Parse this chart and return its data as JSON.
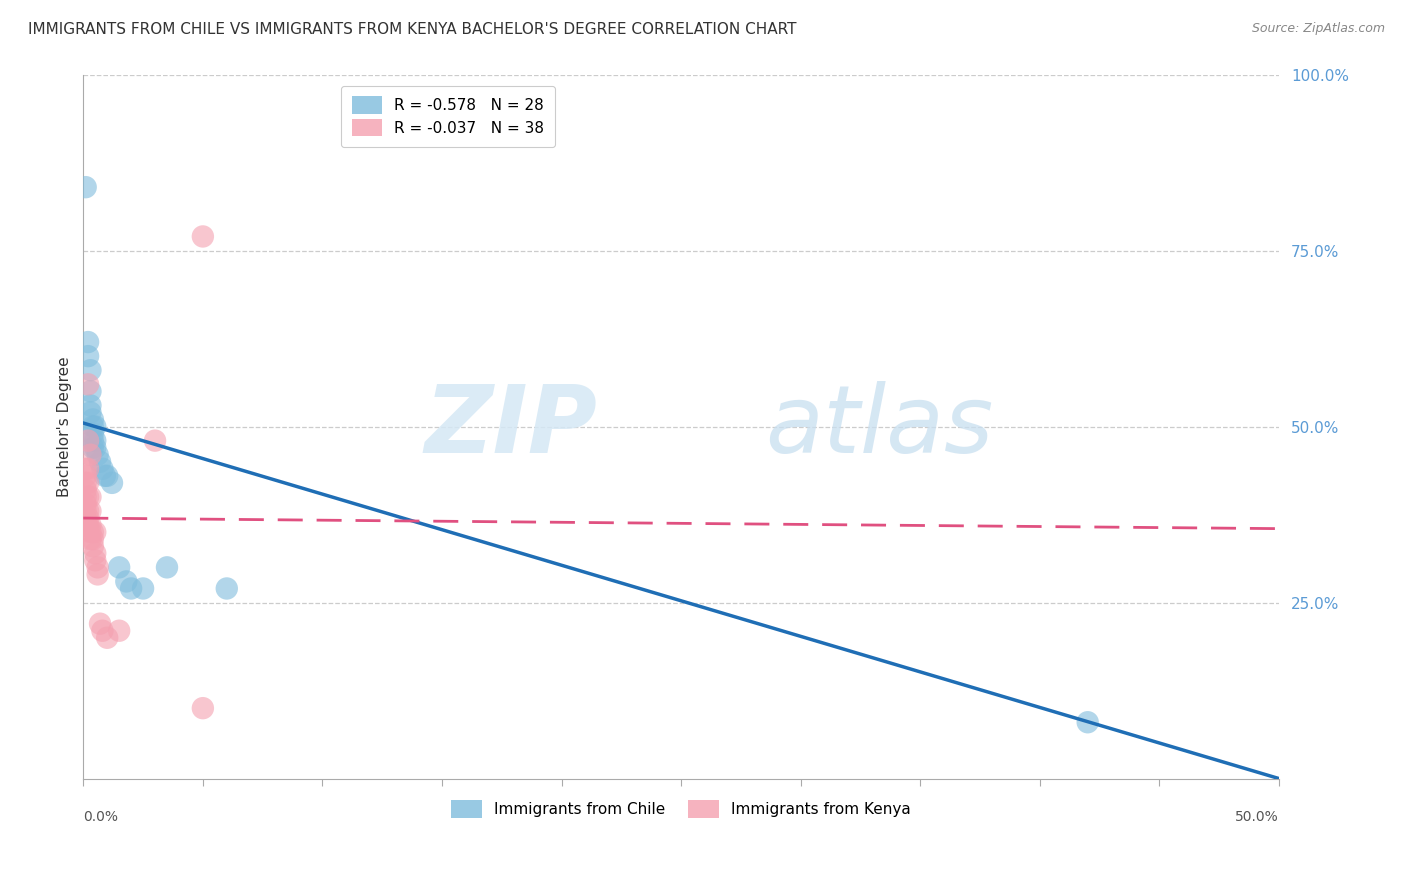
{
  "title": "IMMIGRANTS FROM CHILE VS IMMIGRANTS FROM KENYA BACHELOR'S DEGREE CORRELATION CHART",
  "source": "Source: ZipAtlas.com",
  "ylabel": "Bachelor's Degree",
  "right_yticks": [
    "100.0%",
    "75.0%",
    "50.0%",
    "25.0%"
  ],
  "right_ytick_vals": [
    1.0,
    0.75,
    0.5,
    0.25
  ],
  "legend_chile": "R = -0.578   N = 28",
  "legend_kenya": "R = -0.037   N = 38",
  "chile_color": "#7fbcdc",
  "kenya_color": "#f4a0b0",
  "chile_line_color": "#1f6eb5",
  "kenya_line_color": "#e05080",
  "watermark_zip": "ZIP",
  "watermark_atlas": "atlas",
  "xlim": [
    0.0,
    0.5
  ],
  "ylim": [
    0.0,
    1.0
  ],
  "chile_points": [
    [
      0.001,
      0.84
    ],
    [
      0.002,
      0.62
    ],
    [
      0.002,
      0.6
    ],
    [
      0.003,
      0.58
    ],
    [
      0.003,
      0.55
    ],
    [
      0.003,
      0.53
    ],
    [
      0.003,
      0.52
    ],
    [
      0.004,
      0.51
    ],
    [
      0.004,
      0.5
    ],
    [
      0.004,
      0.49
    ],
    [
      0.004,
      0.48
    ],
    [
      0.004,
      0.47
    ],
    [
      0.005,
      0.5
    ],
    [
      0.005,
      0.48
    ],
    [
      0.005,
      0.47
    ],
    [
      0.006,
      0.46
    ],
    [
      0.007,
      0.45
    ],
    [
      0.008,
      0.44
    ],
    [
      0.009,
      0.43
    ],
    [
      0.01,
      0.43
    ],
    [
      0.012,
      0.42
    ],
    [
      0.015,
      0.3
    ],
    [
      0.018,
      0.28
    ],
    [
      0.02,
      0.27
    ],
    [
      0.025,
      0.27
    ],
    [
      0.035,
      0.3
    ],
    [
      0.06,
      0.27
    ],
    [
      0.42,
      0.08
    ]
  ],
  "kenya_points": [
    [
      0.001,
      0.44
    ],
    [
      0.001,
      0.43
    ],
    [
      0.001,
      0.42
    ],
    [
      0.001,
      0.41
    ],
    [
      0.001,
      0.4
    ],
    [
      0.001,
      0.39
    ],
    [
      0.001,
      0.38
    ],
    [
      0.001,
      0.37
    ],
    [
      0.001,
      0.36
    ],
    [
      0.002,
      0.56
    ],
    [
      0.002,
      0.48
    ],
    [
      0.002,
      0.44
    ],
    [
      0.002,
      0.42
    ],
    [
      0.002,
      0.4
    ],
    [
      0.002,
      0.38
    ],
    [
      0.002,
      0.37
    ],
    [
      0.002,
      0.36
    ],
    [
      0.003,
      0.46
    ],
    [
      0.003,
      0.4
    ],
    [
      0.003,
      0.38
    ],
    [
      0.003,
      0.36
    ],
    [
      0.003,
      0.35
    ],
    [
      0.003,
      0.34
    ],
    [
      0.004,
      0.35
    ],
    [
      0.004,
      0.34
    ],
    [
      0.004,
      0.33
    ],
    [
      0.005,
      0.35
    ],
    [
      0.005,
      0.32
    ],
    [
      0.005,
      0.31
    ],
    [
      0.006,
      0.3
    ],
    [
      0.006,
      0.29
    ],
    [
      0.007,
      0.22
    ],
    [
      0.008,
      0.21
    ],
    [
      0.01,
      0.2
    ],
    [
      0.015,
      0.21
    ],
    [
      0.03,
      0.48
    ],
    [
      0.05,
      0.77
    ],
    [
      0.05,
      0.1
    ]
  ]
}
